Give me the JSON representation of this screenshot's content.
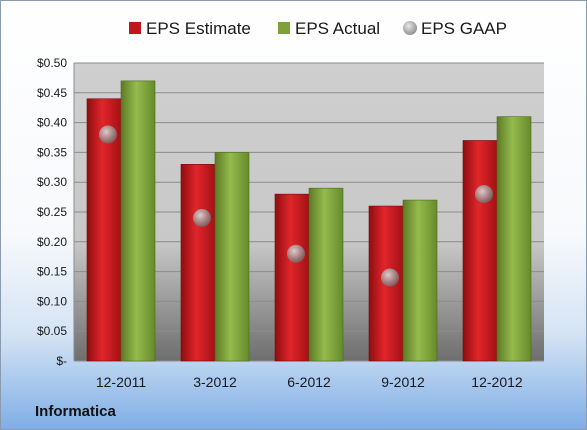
{
  "company": "Informatica",
  "chart_data": {
    "type": "bar",
    "categories": [
      "12-2011",
      "3-2012",
      "6-2012",
      "9-2012",
      "12-2012"
    ],
    "series": [
      {
        "name": "EPS Estimate",
        "type": "bar",
        "color": "#c0161b",
        "values": [
          0.44,
          0.33,
          0.28,
          0.26,
          0.37
        ]
      },
      {
        "name": "EPS Actual",
        "type": "bar",
        "color": "#7ea13a",
        "values": [
          0.47,
          0.35,
          0.29,
          0.27,
          0.41
        ]
      },
      {
        "name": "EPS GAAP",
        "type": "scatter",
        "color": "#9a9a9a",
        "values": [
          0.38,
          0.24,
          0.18,
          0.14,
          0.28
        ]
      }
    ],
    "ylim": [
      0,
      0.5
    ],
    "yticks": [
      0,
      0.05,
      0.1,
      0.15,
      0.2,
      0.25,
      0.3,
      0.35,
      0.4,
      0.45,
      0.5
    ],
    "ytick_labels": [
      "$-",
      "$0.05",
      "$0.10",
      "$0.15",
      "$0.20",
      "$0.25",
      "$0.30",
      "$0.35",
      "$0.40",
      "$0.45",
      "$0.50"
    ],
    "grid": true,
    "legend_position": "top"
  }
}
